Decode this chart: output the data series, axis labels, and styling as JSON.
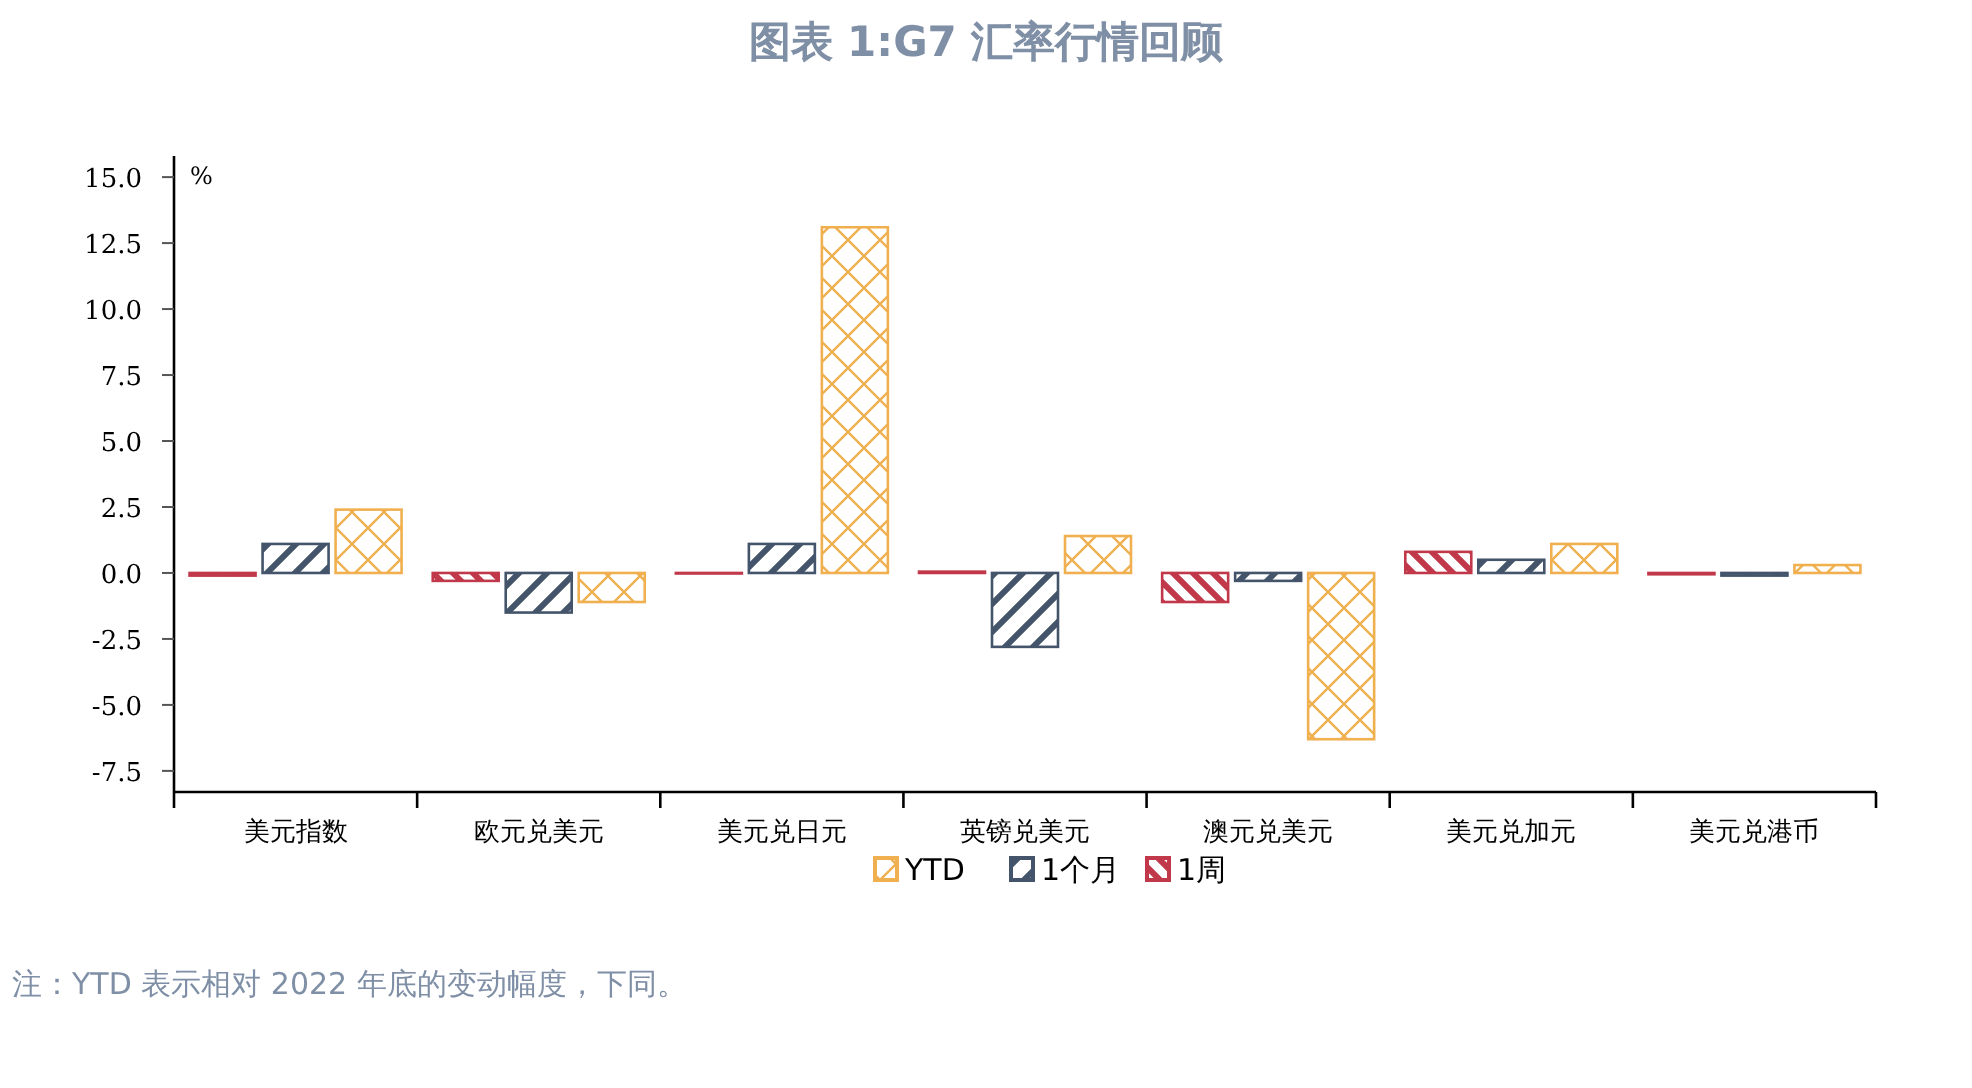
{
  "chart_data": {
    "type": "bar",
    "title": "图表 1:G7 汇率行情回顾",
    "ylabel": "%",
    "categories": [
      "美元指数",
      "欧元兑美元",
      "美元兑日元",
      "英镑兑美元",
      "澳元兑美元",
      "美元兑加元",
      "美元兑港币"
    ],
    "series": [
      {
        "name": "1周",
        "color": "#c0384a",
        "values": [
          -0.1,
          -0.3,
          -0.02,
          0.05,
          -1.1,
          0.8,
          -0.05
        ]
      },
      {
        "name": "1个月",
        "color": "#44546a",
        "values": [
          1.1,
          -1.5,
          1.1,
          -2.8,
          -0.3,
          0.5,
          -0.1
        ]
      },
      {
        "name": "YTD",
        "color": "#f0b050",
        "values": [
          2.4,
          -1.1,
          13.1,
          1.4,
          -6.3,
          1.1,
          0.3
        ]
      }
    ],
    "ylim": [
      -8.3,
      15.8
    ],
    "yticks": [
      {
        "value": -7.5,
        "label": "-7.5"
      },
      {
        "value": -5,
        "label": "-5.0"
      },
      {
        "value": -2.5,
        "label": "-2.5"
      },
      {
        "value": 0,
        "label": "0.0"
      },
      {
        "value": 2.5,
        "label": "2.5"
      },
      {
        "value": 5,
        "label": "5.0"
      },
      {
        "value": 7.5,
        "label": "7.5"
      },
      {
        "value": 10,
        "label": "10.0"
      },
      {
        "value": 12.5,
        "label": "12.5"
      },
      {
        "value": 15,
        "label": "15.0"
      }
    ],
    "legend": "bottom",
    "grid": false,
    "annotations": [
      "注：YTD 表示相对 2022 年底的变动幅度，下同。"
    ]
  }
}
